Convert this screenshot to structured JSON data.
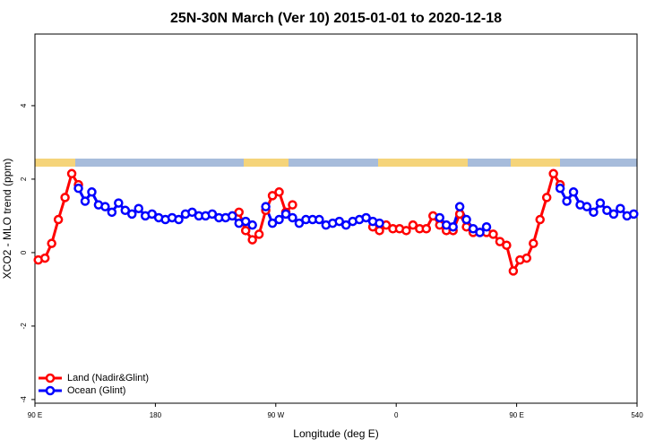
{
  "chart_data": {
    "type": "line",
    "title": "25N-30N March (Ver 10)   2015-01-01 to 2020-12-18",
    "x_label": "Longitude (deg E)",
    "y_label": "XCO2 - MLO trend (ppm)",
    "x": [
      92.5,
      97.5,
      102.5,
      107.5,
      112.5,
      117.5,
      122.5,
      127.5,
      132.5,
      137.5,
      142.5,
      147.5,
      152.5,
      157.5,
      162.5,
      167.5,
      172.5,
      177.5,
      182.5,
      187.5,
      192.5,
      197.5,
      202.5,
      207.5,
      212.5,
      217.5,
      222.5,
      227.5,
      232.5,
      237.5,
      242.5,
      247.5,
      252.5,
      257.5,
      262.5,
      267.5,
      272.5,
      277.5,
      282.5,
      287.5,
      292.5,
      297.5,
      302.5,
      307.5,
      312.5,
      317.5,
      322.5,
      327.5,
      332.5,
      337.5,
      342.5,
      347.5,
      352.5,
      357.5,
      362.5,
      367.5,
      372.5,
      377.5,
      382.5,
      387.5,
      392.5,
      397.5,
      402.5,
      407.5,
      412.5,
      417.5,
      422.5,
      427.5,
      432.5,
      437.5,
      442.5,
      447.5,
      452.5,
      457.5,
      462.5,
      467.5,
      472.5,
      477.5,
      482.5,
      487.5,
      492.5,
      497.5,
      502.5,
      507.5,
      512.5,
      517.5,
      522.5,
      527.5,
      532.5,
      537.5
    ],
    "series": [
      {
        "name": "Land (Nadir&Glint)",
        "color": "#ff0000",
        "values": [
          -0.2,
          -0.15,
          0.25,
          0.9,
          1.5,
          2.15,
          1.85,
          null,
          null,
          null,
          null,
          null,
          null,
          null,
          null,
          null,
          null,
          null,
          null,
          null,
          null,
          null,
          null,
          null,
          null,
          null,
          null,
          null,
          null,
          null,
          1.1,
          0.6,
          0.35,
          0.5,
          1.15,
          1.55,
          1.65,
          1.1,
          1.3,
          null,
          null,
          null,
          null,
          null,
          null,
          null,
          null,
          null,
          null,
          null,
          0.7,
          0.6,
          0.75,
          0.65,
          0.65,
          0.6,
          0.75,
          0.65,
          0.65,
          1.0,
          0.75,
          0.6,
          0.6,
          1.05,
          0.7,
          0.55,
          0.55,
          0.55,
          0.5,
          0.3,
          0.2,
          -0.5,
          -0.2,
          -0.15,
          0.25,
          0.9,
          1.5,
          2.15,
          1.85,
          null,
          null,
          null,
          null,
          null,
          null,
          null,
          null,
          null,
          null,
          null
        ]
      },
      {
        "name": "Ocean (Glint)",
        "color": "#0000ff",
        "values": [
          null,
          null,
          null,
          null,
          null,
          null,
          1.75,
          1.4,
          1.65,
          1.3,
          1.25,
          1.1,
          1.35,
          1.15,
          1.05,
          1.2,
          1.0,
          1.05,
          0.95,
          0.9,
          0.95,
          0.9,
          1.05,
          1.1,
          1.0,
          1.0,
          1.05,
          0.95,
          0.95,
          1.0,
          0.8,
          0.85,
          0.75,
          null,
          1.25,
          0.8,
          0.9,
          1.05,
          0.95,
          0.8,
          0.9,
          0.9,
          0.9,
          0.75,
          0.8,
          0.85,
          0.75,
          0.85,
          0.9,
          0.95,
          0.85,
          0.8,
          null,
          null,
          null,
          null,
          null,
          null,
          null,
          null,
          0.95,
          0.75,
          0.7,
          1.25,
          0.9,
          0.65,
          0.55,
          0.7,
          null,
          null,
          null,
          null,
          null,
          null,
          null,
          null,
          null,
          null,
          1.75,
          1.4,
          1.65,
          1.3,
          1.25,
          1.1,
          1.35,
          1.15,
          1.05,
          1.2,
          1.0,
          1.05
        ]
      }
    ],
    "xlim": [
      90,
      540
    ],
    "xticks": [
      {
        "value": 90,
        "label": "90 E"
      },
      180,
      {
        "value": 270,
        "label": "90 W"
      },
      {
        "value": 360,
        "label": "0"
      },
      {
        "value": 450,
        "label": "90 E"
      },
      540
    ],
    "ylim": [
      -4.1,
      5.95
    ],
    "yticks": [
      -4,
      -2,
      0,
      2,
      4
    ],
    "legend": "bottom-left"
  }
}
